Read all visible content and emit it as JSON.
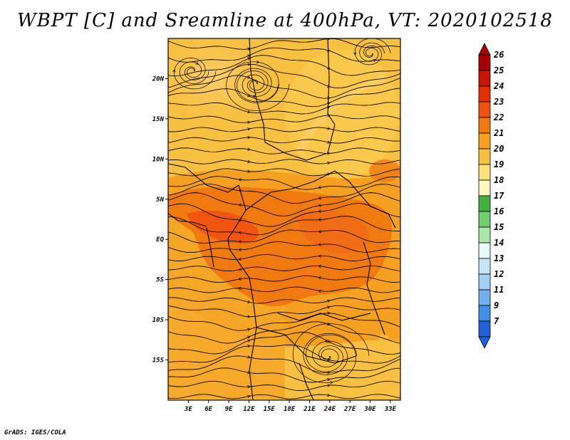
{
  "title": "WBPT [C] and Sreamline at 400hPa, VT: 2020102518",
  "credit": "GrADS: IGES/COLA",
  "map": {
    "lat_ticks": [
      "20N",
      "15N",
      "10N",
      "5N",
      "EQ",
      "5S",
      "10S",
      "15S"
    ],
    "lat_values": [
      20,
      15,
      10,
      5,
      0,
      -5,
      -10,
      -15
    ],
    "lon_ticks": [
      "3E",
      "6E",
      "9E",
      "12E",
      "15E",
      "18E",
      "21E",
      "24E",
      "27E",
      "30E",
      "33E"
    ],
    "lon_values": [
      3,
      6,
      9,
      12,
      15,
      18,
      21,
      24,
      27,
      30,
      33
    ],
    "lon_range": [
      0,
      34.5
    ],
    "lat_range": [
      -20,
      25
    ]
  },
  "colorbar": {
    "labels": [
      "26",
      "25",
      "24",
      "23",
      "22",
      "21",
      "20",
      "19",
      "18",
      "17",
      "16",
      "15",
      "14",
      "13",
      "12",
      "11",
      "9",
      "7"
    ],
    "colors": [
      "#a50000",
      "#c81400",
      "#e03000",
      "#f05010",
      "#f07a10",
      "#f5a020",
      "#f8c040",
      "#fbe080",
      "#fff8c0",
      "#40b040",
      "#70d070",
      "#a8e8a8",
      "#e6f8f8",
      "#c4e4f8",
      "#a0d0f4",
      "#70b0f0",
      "#4090e8",
      "#2060d8"
    ]
  }
}
